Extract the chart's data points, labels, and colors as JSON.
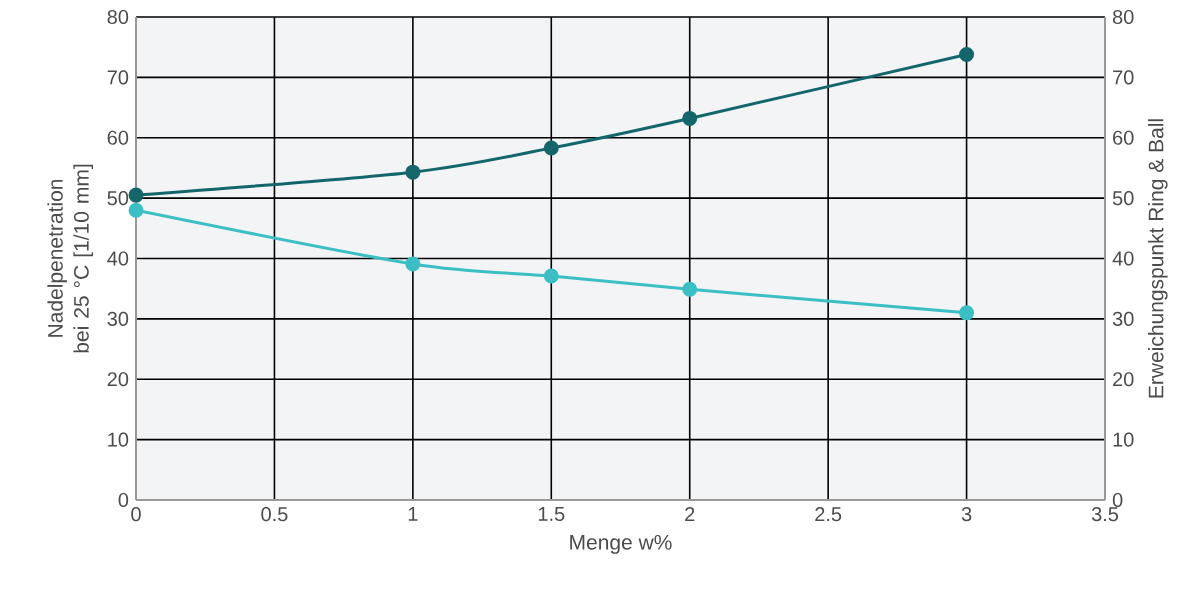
{
  "chart_data": {
    "type": "line",
    "xlabel": "Menge w%",
    "ylabel": "Nadelpenetration bei 25 °C [1/10 mm]",
    "y2label": "Erweichungspunkt Ring & Ball",
    "x": [
      0,
      1,
      1.5,
      2,
      3
    ],
    "series": [
      {
        "color": "#3bbfc4",
        "values": [
          48.0,
          39.1,
          37.1,
          34.9,
          31.0
        ],
        "axis": "y"
      },
      {
        "color": "#14666a",
        "values": [
          50.5,
          54.3,
          58.3,
          63.2,
          73.8
        ],
        "axis": "y2"
      }
    ],
    "xlim": [
      0,
      3.5
    ],
    "xticks": [
      0,
      0.5,
      1,
      1.5,
      2,
      2.5,
      3,
      3.5
    ],
    "ylim": [
      0,
      80
    ],
    "yticks": [
      0,
      10,
      20,
      30,
      40,
      50,
      60,
      70,
      80
    ],
    "y2lim": [
      0,
      80
    ],
    "y2ticks": [
      0,
      10,
      20,
      30,
      40,
      50,
      60,
      70,
      80
    ],
    "grid": true,
    "marker": "circle"
  }
}
